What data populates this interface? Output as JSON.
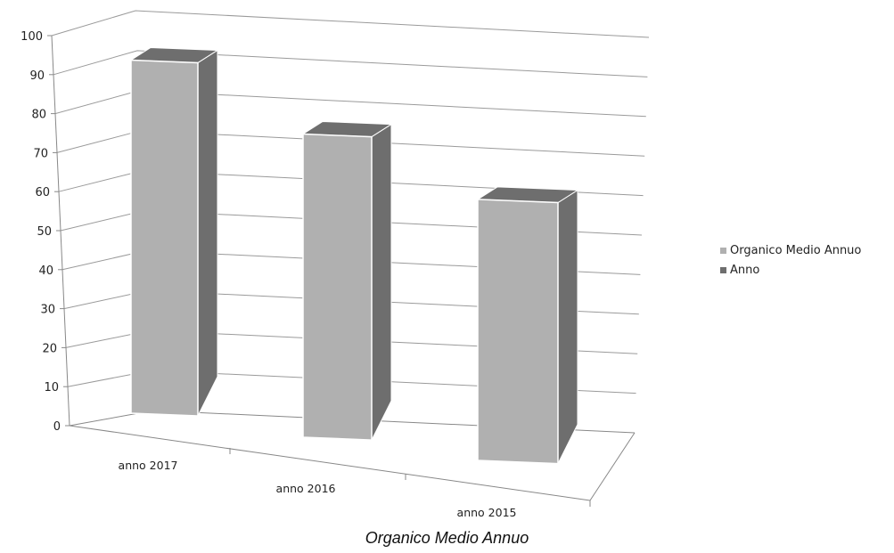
{
  "chart_data": {
    "type": "bar",
    "categories": [
      "anno 2017",
      "anno 2016",
      "anno 2015"
    ],
    "series": [
      {
        "name": "Organico Medio Annuo",
        "values": [
          92,
          79,
          68
        ],
        "color": "#b0b0b0"
      },
      {
        "name": "Anno",
        "values": [
          null,
          null,
          null
        ],
        "color": "#6e6e6e"
      }
    ],
    "ylim": [
      0,
      100
    ],
    "yticks": [
      0,
      10,
      20,
      30,
      40,
      50,
      60,
      70,
      80,
      90,
      100
    ],
    "grid": true,
    "legend": "right",
    "caption": "Organico Medio Annuo",
    "style": "3d-column"
  }
}
